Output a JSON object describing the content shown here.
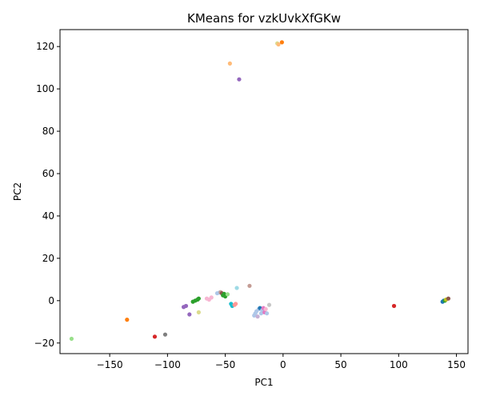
{
  "chart_data": {
    "type": "scatter",
    "title": "KMeans for vzkUvkXfGKw",
    "xlabel": "PC1",
    "ylabel": "PC2",
    "xlim": [
      -193,
      160
    ],
    "ylim": [
      -25,
      128
    ],
    "xticks": [
      -150,
      -100,
      -50,
      0,
      50,
      100,
      150
    ],
    "yticks": [
      -20,
      0,
      20,
      40,
      60,
      80,
      100,
      120
    ],
    "grid": false,
    "legend": "none",
    "points": [
      {
        "x": -183,
        "y": -18,
        "color": "#98df8a"
      },
      {
        "x": -135,
        "y": -9,
        "color": "#ff7f0e"
      },
      {
        "x": -111,
        "y": -17,
        "color": "#d62728"
      },
      {
        "x": -102,
        "y": -16,
        "color": "#7f7f7f"
      },
      {
        "x": -86,
        "y": -3,
        "color": "#9467bd"
      },
      {
        "x": -84,
        "y": -2.5,
        "color": "#9467bd"
      },
      {
        "x": -81,
        "y": -6.5,
        "color": "#9467bd"
      },
      {
        "x": -78,
        "y": -0.5,
        "color": "#2ca02c"
      },
      {
        "x": -76,
        "y": 0,
        "color": "#2ca02c"
      },
      {
        "x": -74,
        "y": 0.5,
        "color": "#2ca02c"
      },
      {
        "x": -73,
        "y": 1,
        "color": "#2ca02c"
      },
      {
        "x": -73,
        "y": -5.5,
        "color": "#dbdb8d"
      },
      {
        "x": -66,
        "y": 1,
        "color": "#f7b6d2"
      },
      {
        "x": -64,
        "y": 0.5,
        "color": "#f7b6d2"
      },
      {
        "x": -62,
        "y": 1.5,
        "color": "#f7b6d2"
      },
      {
        "x": -57,
        "y": 3.5,
        "color": "#aec7e8"
      },
      {
        "x": -55,
        "y": 3.8,
        "color": "#aec7e8"
      },
      {
        "x": -54,
        "y": 4,
        "color": "#c49c94"
      },
      {
        "x": -53,
        "y": 3.5,
        "color": "#8c564b"
      },
      {
        "x": -52,
        "y": 2.5,
        "color": "#2ca02c"
      },
      {
        "x": -51,
        "y": 3.2,
        "color": "#2ca02c"
      },
      {
        "x": -50,
        "y": 2,
        "color": "#2ca02c"
      },
      {
        "x": -48,
        "y": 3,
        "color": "#98df8a"
      },
      {
        "x": -45,
        "y": -1.5,
        "color": "#17becf"
      },
      {
        "x": -44,
        "y": -2.5,
        "color": "#17becf"
      },
      {
        "x": -42,
        "y": -2,
        "color": "#ff9896"
      },
      {
        "x": -41,
        "y": -1.5,
        "color": "#ff9896"
      },
      {
        "x": -40,
        "y": 6,
        "color": "#9edae5"
      },
      {
        "x": -29,
        "y": 7,
        "color": "#c49c94"
      },
      {
        "x": -25,
        "y": -7,
        "color": "#aec7e8"
      },
      {
        "x": -24,
        "y": -6,
        "color": "#aec7e8"
      },
      {
        "x": -23,
        "y": -5,
        "color": "#aec7e8"
      },
      {
        "x": -22,
        "y": -7.5,
        "color": "#c5b0d5"
      },
      {
        "x": -21,
        "y": -4,
        "color": "#aec7e8"
      },
      {
        "x": -20,
        "y": -3.5,
        "color": "#1f77b4"
      },
      {
        "x": -19,
        "y": -6,
        "color": "#aec7e8"
      },
      {
        "x": -18,
        "y": -4.5,
        "color": "#aec7e8"
      },
      {
        "x": -17,
        "y": -3.5,
        "color": "#e377c2"
      },
      {
        "x": -16,
        "y": -5.5,
        "color": "#e377c2"
      },
      {
        "x": -15,
        "y": -4,
        "color": "#f7b6d2"
      },
      {
        "x": -14,
        "y": -6,
        "color": "#aec7e8"
      },
      {
        "x": -12,
        "y": -2,
        "color": "#c7c7c7"
      },
      {
        "x": -46,
        "y": 112,
        "color": "#ffbb78"
      },
      {
        "x": -38,
        "y": 104.5,
        "color": "#9467bd"
      },
      {
        "x": -5,
        "y": 121.5,
        "color": "#dbdb8d"
      },
      {
        "x": -4,
        "y": 121,
        "color": "#ffbb78"
      },
      {
        "x": -1,
        "y": 122,
        "color": "#ff7f0e"
      },
      {
        "x": 96,
        "y": -2.5,
        "color": "#d62728"
      },
      {
        "x": 138,
        "y": -0.5,
        "color": "#1f77b4"
      },
      {
        "x": 139,
        "y": 0,
        "color": "#1f77b4"
      },
      {
        "x": 140,
        "y": 0,
        "color": "#2ca02c"
      },
      {
        "x": 141,
        "y": 0.5,
        "color": "#bcbd22"
      },
      {
        "x": 143,
        "y": 1,
        "color": "#8c564b"
      }
    ]
  }
}
